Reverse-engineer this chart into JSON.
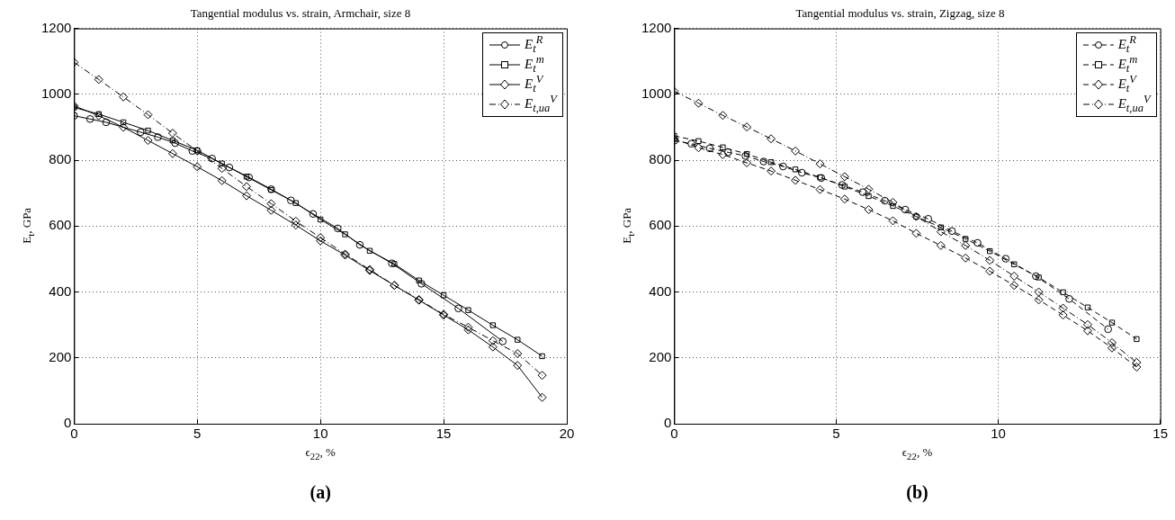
{
  "chart_data": [
    {
      "type": "line",
      "title": "Tangential modulus vs. strain, Armchair, size 8",
      "xlabel": "ϵ$_{22}$, %",
      "ylabel": "E$_{t}$, GPa",
      "xlim": [
        0,
        20
      ],
      "xticks": [
        0,
        5,
        10,
        15,
        20
      ],
      "ylim": [
        0,
        1200
      ],
      "yticks": [
        0,
        200,
        400,
        600,
        800,
        1000,
        1200
      ],
      "grid": true,
      "legend": "top right",
      "annotations": [
        "(a)"
      ],
      "series": [
        {
          "name": "E$_{t}$$^{R}$",
          "color": "#000000",
          "marker": "circle",
          "line_style": "solid",
          "x": [
            0,
            0.65,
            1.3,
            2.7,
            3.4,
            4.1,
            4.8,
            5.6,
            6.3,
            7.1,
            8,
            8.8,
            9.7,
            10.7,
            11.6,
            12.9,
            14.1,
            15.6,
            17.4
          ],
          "values": [
            935,
            925,
            915,
            885,
            870,
            852,
            828,
            805,
            778,
            748,
            712,
            678,
            637,
            593,
            543,
            487,
            425,
            350,
            250
          ]
        },
        {
          "name": "E$_{t}$$^{m}$",
          "color": "#000000",
          "marker": "square",
          "line_style": "solid",
          "x": [
            0,
            1,
            2,
            3,
            4,
            5,
            6,
            7,
            8,
            9,
            10,
            11,
            12,
            13,
            14,
            15,
            16,
            17,
            18,
            19
          ],
          "values": [
            960,
            940,
            915,
            890,
            860,
            830,
            790,
            750,
            710,
            670,
            620,
            575,
            525,
            485,
            435,
            390,
            345,
            299,
            255,
            205
          ]
        },
        {
          "name": "E$_{t}$$^{V}$",
          "color": "#000000",
          "marker": "diamond",
          "line_style": "solid",
          "x": [
            0,
            1,
            2,
            3,
            4,
            5,
            6,
            7,
            8,
            9,
            10,
            11,
            12,
            13,
            14,
            15,
            16,
            17,
            18,
            19
          ],
          "values": [
            965,
            935,
            900,
            860,
            820,
            780,
            738,
            692,
            648,
            603,
            555,
            512,
            465,
            420,
            375,
            330,
            285,
            233,
            177,
            80
          ]
        },
        {
          "name": "E$_{t,ua}$$^{V}$",
          "color": "#000000",
          "marker": "diamond",
          "line_style": "dashdot",
          "x": [
            0,
            1,
            2,
            3,
            4,
            5,
            6,
            7,
            8,
            9,
            10,
            11,
            12,
            13,
            14,
            15,
            16,
            17,
            18,
            19
          ],
          "values": [
            1097,
            1045,
            992,
            938,
            882,
            828,
            775,
            720,
            668,
            615,
            565,
            515,
            468,
            420,
            377,
            332,
            293,
            252,
            213,
            147
          ]
        }
      ]
    },
    {
      "type": "line",
      "title": "Tangential modulus vs. strain, Zigzag, size 8",
      "xlabel": "ϵ$_{22}$, %",
      "ylabel": "E$_{t}$, GPa",
      "xlim": [
        0,
        15
      ],
      "xticks": [
        0,
        5,
        10,
        15
      ],
      "ylim": [
        0,
        1200
      ],
      "yticks": [
        0,
        200,
        400,
        600,
        800,
        1000,
        1200
      ],
      "grid": true,
      "legend": "top right",
      "annotations": [
        "(b)"
      ],
      "series": [
        {
          "name": "E$_{t}$$^{R}$",
          "color": "#000000",
          "marker": "circle",
          "line_style": "dashed",
          "x": [
            0,
            0.53,
            1.1,
            1.66,
            2.2,
            2.76,
            3.36,
            3.94,
            4.54,
            5.18,
            5.82,
            6.5,
            7.13,
            7.84,
            8.57,
            9.36,
            10.23,
            11.16,
            12.19,
            13.39
          ],
          "values": [
            859,
            850,
            836,
            824,
            813,
            796,
            781,
            762,
            746,
            725,
            703,
            677,
            650,
            622,
            585,
            549,
            501,
            448,
            379,
            287
          ]
        },
        {
          "name": "E$_{t}$$^{m}$",
          "color": "#000000",
          "marker": "square",
          "line_style": "dashed",
          "x": [
            0,
            0.75,
            1.5,
            2.24,
            2.99,
            3.74,
            4.5,
            5.26,
            6.0,
            6.75,
            7.47,
            8.23,
            8.99,
            9.74,
            10.49,
            11.25,
            12.0,
            12.76,
            13.51,
            14.27
          ],
          "values": [
            874,
            858,
            839,
            819,
            794,
            772,
            748,
            720,
            691,
            661,
            629,
            596,
            561,
            524,
            484,
            444,
            399,
            353,
            307,
            257
          ]
        },
        {
          "name": "E$_{t}$$^{V}$",
          "color": "#000000",
          "marker": "diamond",
          "line_style": "dashed",
          "x": [
            0,
            0.75,
            1.5,
            2.24,
            2.99,
            3.74,
            4.5,
            5.26,
            6.0,
            6.75,
            7.47,
            8.23,
            8.99,
            9.74,
            10.49,
            11.25,
            12.0,
            12.76,
            13.51,
            14.27
          ],
          "values": [
            865,
            838,
            817,
            792,
            767,
            739,
            711,
            682,
            650,
            616,
            578,
            541,
            503,
            463,
            420,
            376,
            330,
            282,
            230,
            172
          ]
        },
        {
          "name": "E$_{t,ua}$$^{V}$",
          "color": "#000000",
          "marker": "diamond",
          "line_style": "dashdot",
          "x": [
            0,
            0.75,
            1.5,
            2.24,
            2.99,
            3.74,
            4.5,
            5.26,
            6.0,
            6.75,
            7.47,
            8.23,
            8.99,
            9.74,
            10.49,
            11.25,
            12.0,
            12.76,
            13.51,
            14.27
          ],
          "values": [
            1009,
            973,
            936,
            901,
            865,
            828,
            789,
            750,
            712,
            672,
            629,
            583,
            541,
            496,
            448,
            400,
            351,
            301,
            246,
            186
          ]
        }
      ]
    }
  ]
}
